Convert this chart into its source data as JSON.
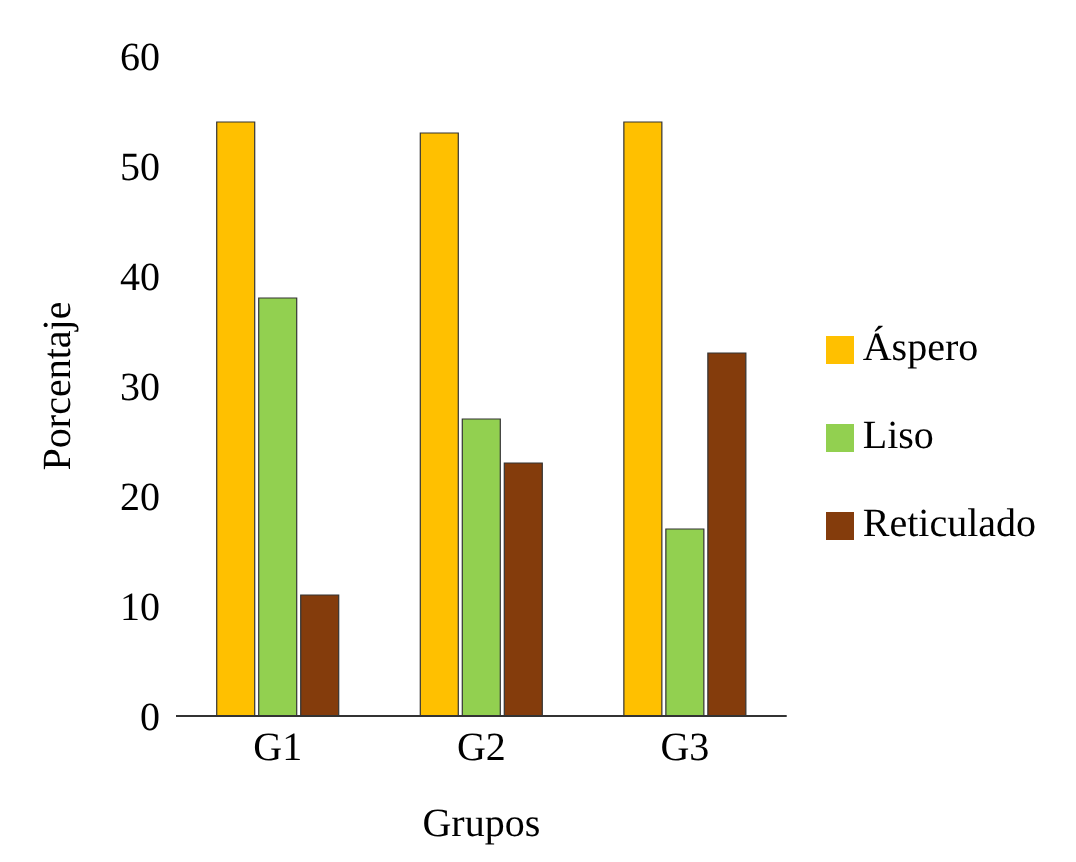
{
  "chart_data": {
    "type": "bar",
    "xlabel": "Grupos",
    "ylabel": "Porcentaje",
    "categories": [
      "G1",
      "G2",
      "G3"
    ],
    "series": [
      {
        "name": "Áspero",
        "color": "#ffc000",
        "values": [
          54,
          53,
          54
        ]
      },
      {
        "name": "Liso",
        "color": "#92d050",
        "values": [
          38,
          27,
          17
        ]
      },
      {
        "name": "Reticulado",
        "color": "#843c0c",
        "values": [
          11,
          23,
          33
        ]
      }
    ],
    "ylim": [
      0,
      60
    ],
    "yticks": [
      0,
      10,
      20,
      30,
      40,
      50,
      60
    ],
    "grid": false,
    "legend": "right"
  }
}
